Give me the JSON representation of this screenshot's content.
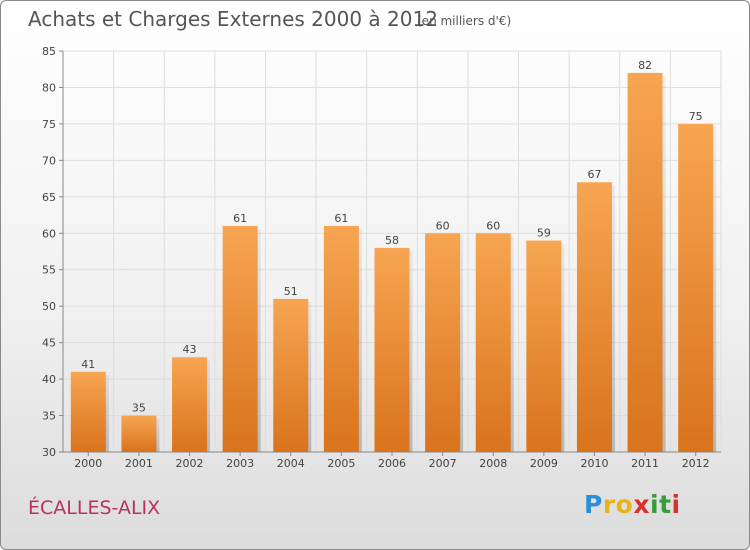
{
  "header": {
    "title": "Achats et Charges Externes 2000 à 2012",
    "subtitle": "(en milliers d'€)"
  },
  "footer": {
    "place": "ÉCALLES-ALIX",
    "logo_letters": [
      "P",
      "r",
      "o",
      "x",
      "i",
      "t",
      "i"
    ],
    "logo_colors": [
      "#2a8fd8",
      "#e8b21a",
      "#e8b21a",
      "#d9302c",
      "#3a9b3a",
      "#3a9b3a",
      "#d9302c"
    ]
  },
  "chart_data": {
    "type": "bar",
    "title": "Achats et Charges Externes 2000 à 2012",
    "subtitle": "(en milliers d'€)",
    "categories": [
      "2000",
      "2001",
      "2002",
      "2003",
      "2004",
      "2005",
      "2006",
      "2007",
      "2008",
      "2009",
      "2010",
      "2011",
      "2012"
    ],
    "values": [
      41,
      35,
      43,
      61,
      51,
      61,
      58,
      60,
      60,
      59,
      67,
      82,
      75
    ],
    "ylim": [
      30,
      85
    ],
    "yticks": [
      30,
      35,
      40,
      45,
      50,
      55,
      60,
      65,
      70,
      75,
      80,
      85
    ],
    "grid": true,
    "bar_color_top": "#f7a552",
    "bar_color_bottom": "#d9731c"
  }
}
